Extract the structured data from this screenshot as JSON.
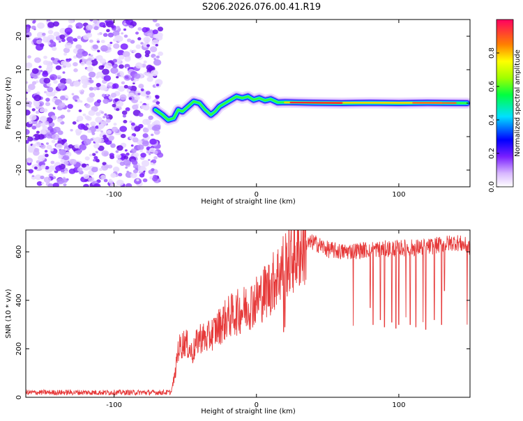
{
  "chart_data": [
    {
      "type": "heatmap",
      "title": "S206.2026.076.00.41.R19",
      "xlabel": "Height of straight line (km)",
      "ylabel": "Frequency (Hz)",
      "xlim": [
        -162,
        150
      ],
      "ylim": [
        -25,
        25
      ],
      "xticks": [
        -100,
        0,
        100
      ],
      "xtick_labels": [
        "-100",
        "0",
        "100"
      ],
      "yticks": [
        -20,
        -10,
        0,
        10,
        20
      ],
      "ytick_labels": [
        "-20",
        "-10",
        "0",
        "10",
        "20"
      ],
      "noise_region_x": [
        -162,
        -72
      ],
      "signal_track": {
        "x": [
          -71,
          -66,
          -62,
          -58,
          -55,
          -52,
          -48,
          -44,
          -40,
          -36,
          -32,
          -29,
          -26,
          -22,
          -18,
          -14,
          -10,
          -6,
          -2,
          2,
          6,
          10,
          15,
          20,
          40,
          60,
          80,
          100,
          120,
          148
        ],
        "y": [
          -2,
          -3.5,
          -5,
          -4.5,
          -2,
          -2.5,
          -1,
          0.5,
          0,
          -2,
          -3.5,
          -2.5,
          -1,
          0,
          1,
          2,
          1.5,
          2,
          1,
          1.5,
          0.8,
          1.2,
          0.2,
          0.3,
          0.1,
          0,
          0.1,
          0,
          0.1,
          0
        ]
      },
      "colorbar": {
        "label": "Normalized spectral amplitude",
        "range": [
          0,
          1
        ],
        "ticks": [
          0.0,
          0.2,
          0.4,
          0.6,
          0.8
        ],
        "tick_labels": [
          "0.0",
          "0.2",
          "0.4",
          "0.6",
          "0.8"
        ]
      }
    },
    {
      "type": "line",
      "xlabel": "Height of straight line (km)",
      "ylabel": "SNR (10 * v/v)",
      "xlim": [
        -162,
        150
      ],
      "ylim": [
        0,
        690
      ],
      "xticks": [
        -100,
        0,
        100
      ],
      "xtick_labels": [
        "-100",
        "0",
        "100"
      ],
      "yticks": [
        0,
        200,
        400,
        600
      ],
      "ytick_labels": [
        "0",
        "200",
        "400",
        "600"
      ],
      "series_color": "#e63a3a",
      "envelope": {
        "x": [
          -162,
          -60,
          -57,
          -55,
          -50,
          -45,
          -40,
          -35,
          -30,
          -20,
          -10,
          0,
          10,
          20,
          30,
          35,
          40,
          50,
          60,
          80,
          100,
          120,
          140,
          150
        ],
        "y": [
          20,
          20,
          100,
          200,
          230,
          180,
          250,
          240,
          270,
          330,
          360,
          400,
          460,
          550,
          600,
          630,
          640,
          610,
          600,
          610,
          615,
          620,
          640,
          620
        ]
      },
      "dropouts": {
        "x": [
          19,
          20,
          68,
          80,
          82,
          87,
          90,
          95,
          98,
          100,
          105,
          108,
          112,
          117,
          119,
          125,
          130,
          132,
          148
        ],
        "y": [
          270,
          290,
          295,
          370,
          300,
          320,
          290,
          310,
          285,
          300,
          330,
          300,
          290,
          310,
          280,
          320,
          300,
          440,
          300
        ]
      }
    }
  ]
}
